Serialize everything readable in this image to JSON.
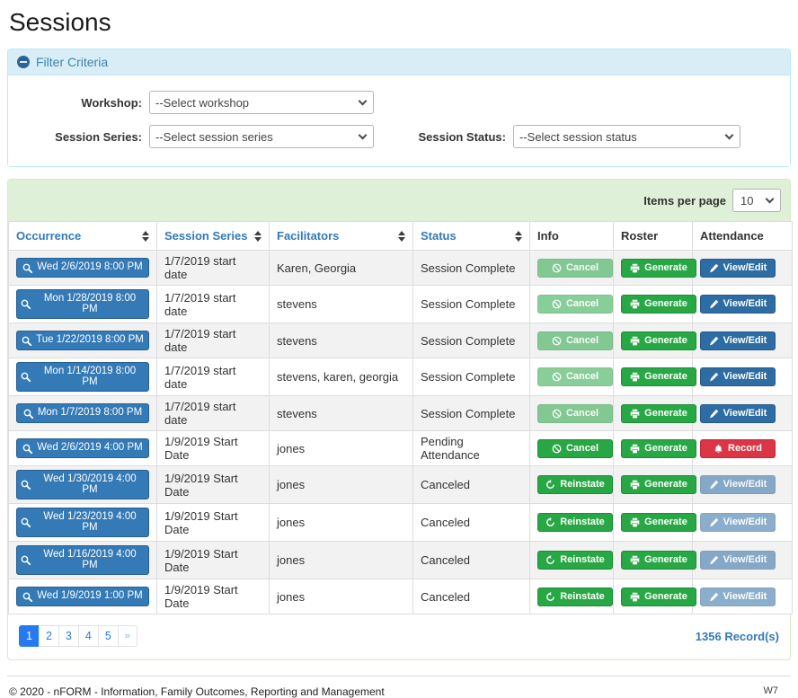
{
  "page": {
    "title": "Sessions"
  },
  "colors": {
    "primary_blue": "#337ab7",
    "button_blue": "#2e6da4",
    "success_green": "#28a745",
    "danger_red": "#dc3545",
    "pagination_blue": "#2779f0",
    "filter_header_bg": "#d9edf7",
    "filter_border": "#bce8f1",
    "green_bar_bg": "#dff0d8",
    "green_border": "#d6e9c6",
    "row_stripe": "#f2f2f2",
    "table_border": "#dddddd"
  },
  "filter": {
    "title": "Filter Criteria",
    "collapse_icon": "minus-circle-icon",
    "workshop_label": "Workshop:",
    "workshop_value": "--Select workshop",
    "session_series_label": "Session Series:",
    "session_series_value": "--Select session series",
    "session_status_label": "Session Status:",
    "session_status_value": "--Select session status"
  },
  "table": {
    "items_per_page_label": "Items per page",
    "items_per_page_value": "10",
    "record_count": "1356 Record(s)",
    "columns": [
      {
        "label": "Occurrence",
        "sortable": true
      },
      {
        "label": "Session Series",
        "sortable": true
      },
      {
        "label": "Facilitators",
        "sortable": true
      },
      {
        "label": "Status",
        "sortable": true
      },
      {
        "label": "Info",
        "sortable": false
      },
      {
        "label": "Roster",
        "sortable": false
      },
      {
        "label": "Attendance",
        "sortable": false
      }
    ],
    "rows": [
      {
        "occurrence": "Wed 2/6/2019 8:00 PM",
        "session_series": "1/7/2019 start date",
        "facilitators": "Karen, Georgia",
        "status": "Session Complete",
        "info": {
          "name": "cancel-button",
          "label": "Cancel",
          "icon": "ban-icon",
          "variant": "success",
          "disabled": true
        },
        "roster": {
          "name": "generate-button",
          "label": "Generate",
          "icon": "printer-icon",
          "variant": "success",
          "disabled": false
        },
        "attendance": {
          "name": "view-edit-button",
          "label": "View/Edit",
          "icon": "pencil-icon",
          "variant": "primary",
          "disabled": false
        }
      },
      {
        "occurrence": "Mon 1/28/2019 8:00 PM",
        "session_series": "1/7/2019 start date",
        "facilitators": "stevens",
        "status": "Session Complete",
        "info": {
          "name": "cancel-button",
          "label": "Cancel",
          "icon": "ban-icon",
          "variant": "success",
          "disabled": true
        },
        "roster": {
          "name": "generate-button",
          "label": "Generate",
          "icon": "printer-icon",
          "variant": "success",
          "disabled": false
        },
        "attendance": {
          "name": "view-edit-button",
          "label": "View/Edit",
          "icon": "pencil-icon",
          "variant": "primary",
          "disabled": false
        }
      },
      {
        "occurrence": "Tue 1/22/2019 8:00 PM",
        "session_series": "1/7/2019 start date",
        "facilitators": "stevens",
        "status": "Session Complete",
        "info": {
          "name": "cancel-button",
          "label": "Cancel",
          "icon": "ban-icon",
          "variant": "success",
          "disabled": true
        },
        "roster": {
          "name": "generate-button",
          "label": "Generate",
          "icon": "printer-icon",
          "variant": "success",
          "disabled": false
        },
        "attendance": {
          "name": "view-edit-button",
          "label": "View/Edit",
          "icon": "pencil-icon",
          "variant": "primary",
          "disabled": false
        }
      },
      {
        "occurrence": "Mon 1/14/2019 8:00 PM",
        "session_series": "1/7/2019 start date",
        "facilitators": "stevens, karen, georgia",
        "status": "Session Complete",
        "info": {
          "name": "cancel-button",
          "label": "Cancel",
          "icon": "ban-icon",
          "variant": "success",
          "disabled": true
        },
        "roster": {
          "name": "generate-button",
          "label": "Generate",
          "icon": "printer-icon",
          "variant": "success",
          "disabled": false
        },
        "attendance": {
          "name": "view-edit-button",
          "label": "View/Edit",
          "icon": "pencil-icon",
          "variant": "primary",
          "disabled": false
        }
      },
      {
        "occurrence": "Mon 1/7/2019 8:00 PM",
        "session_series": "1/7/2019 start date",
        "facilitators": "stevens",
        "status": "Session Complete",
        "info": {
          "name": "cancel-button",
          "label": "Cancel",
          "icon": "ban-icon",
          "variant": "success",
          "disabled": true
        },
        "roster": {
          "name": "generate-button",
          "label": "Generate",
          "icon": "printer-icon",
          "variant": "success",
          "disabled": false
        },
        "attendance": {
          "name": "view-edit-button",
          "label": "View/Edit",
          "icon": "pencil-icon",
          "variant": "primary",
          "disabled": false
        }
      },
      {
        "occurrence": "Wed 2/6/2019 4:00 PM",
        "session_series": "1/9/2019 Start Date",
        "facilitators": "jones",
        "status": "Pending Attendance",
        "info": {
          "name": "cancel-button",
          "label": "Cancel",
          "icon": "ban-icon",
          "variant": "success",
          "disabled": false
        },
        "roster": {
          "name": "generate-button",
          "label": "Generate",
          "icon": "printer-icon",
          "variant": "success",
          "disabled": false
        },
        "attendance": {
          "name": "record-button",
          "label": "Record",
          "icon": "bell-icon",
          "variant": "danger",
          "disabled": false
        }
      },
      {
        "occurrence": "Wed 1/30/2019 4:00 PM",
        "session_series": "1/9/2019 Start Date",
        "facilitators": "jones",
        "status": "Canceled",
        "info": {
          "name": "reinstate-button",
          "label": "Reinstate",
          "icon": "undo-icon",
          "variant": "success",
          "disabled": false
        },
        "roster": {
          "name": "generate-button",
          "label": "Generate",
          "icon": "printer-icon",
          "variant": "success",
          "disabled": false
        },
        "attendance": {
          "name": "view-edit-button",
          "label": "View/Edit",
          "icon": "pencil-icon",
          "variant": "primary",
          "disabled": true
        }
      },
      {
        "occurrence": "Wed 1/23/2019 4:00 PM",
        "session_series": "1/9/2019 Start Date",
        "facilitators": "jones",
        "status": "Canceled",
        "info": {
          "name": "reinstate-button",
          "label": "Reinstate",
          "icon": "undo-icon",
          "variant": "success",
          "disabled": false
        },
        "roster": {
          "name": "generate-button",
          "label": "Generate",
          "icon": "printer-icon",
          "variant": "success",
          "disabled": false
        },
        "attendance": {
          "name": "view-edit-button",
          "label": "View/Edit",
          "icon": "pencil-icon",
          "variant": "primary",
          "disabled": true
        }
      },
      {
        "occurrence": "Wed 1/16/2019 4:00 PM",
        "session_series": "1/9/2019 Start Date",
        "facilitators": "jones",
        "status": "Canceled",
        "info": {
          "name": "reinstate-button",
          "label": "Reinstate",
          "icon": "undo-icon",
          "variant": "success",
          "disabled": false
        },
        "roster": {
          "name": "generate-button",
          "label": "Generate",
          "icon": "printer-icon",
          "variant": "success",
          "disabled": false
        },
        "attendance": {
          "name": "view-edit-button",
          "label": "View/Edit",
          "icon": "pencil-icon",
          "variant": "primary",
          "disabled": true
        }
      },
      {
        "occurrence": "Wed 1/9/2019 1:00 PM",
        "session_series": "1/9/2019 Start Date",
        "facilitators": "jones",
        "status": "Canceled",
        "info": {
          "name": "reinstate-button",
          "label": "Reinstate",
          "icon": "undo-icon",
          "variant": "success",
          "disabled": false
        },
        "roster": {
          "name": "generate-button",
          "label": "Generate",
          "icon": "printer-icon",
          "variant": "success",
          "disabled": false
        },
        "attendance": {
          "name": "view-edit-button",
          "label": "View/Edit",
          "icon": "pencil-icon",
          "variant": "primary",
          "disabled": true
        }
      }
    ]
  },
  "pagination": {
    "pages": [
      "1",
      "2",
      "3",
      "4",
      "5"
    ],
    "active": "1",
    "next_label": "»"
  },
  "footer": {
    "copyright": "© 2020 - nFORM - Information, Family Outcomes, Reporting and Management",
    "version": "W7"
  }
}
